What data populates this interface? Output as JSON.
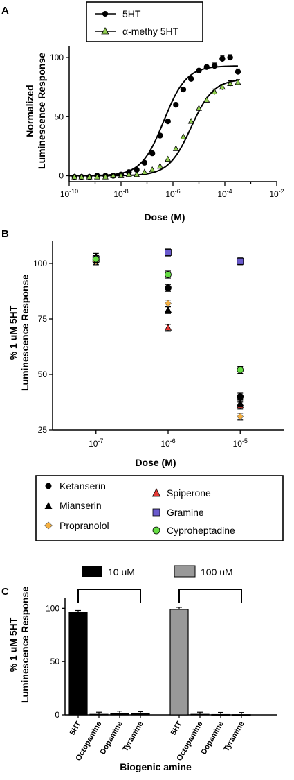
{
  "chart_data": [
    {
      "panel": "A",
      "type": "scatter",
      "x_scale": "log",
      "xlabel": "Dose (M)",
      "ylabel_lines": [
        "Normalized",
        "Luminescence Response"
      ],
      "xlim": [
        1e-10,
        0.01
      ],
      "ylim": [
        -5,
        110
      ],
      "x_ticks": [
        {
          "v": 1e-10,
          "base": "10",
          "exp": "-10"
        },
        {
          "v": 1e-08,
          "base": "10",
          "exp": "-8"
        },
        {
          "v": 1e-06,
          "base": "10",
          "exp": "-6"
        },
        {
          "v": 0.0001,
          "base": "10",
          "exp": "-4"
        },
        {
          "v": 0.01,
          "base": "10",
          "exp": "-2"
        }
      ],
      "y_ticks": [
        "0",
        "50",
        "100"
      ],
      "legend": [
        "5HT",
        "α-methy 5HT"
      ],
      "series": [
        {
          "name": "5HT",
          "marker": "circle",
          "color": "#000000",
          "fit": {
            "bottom": 0,
            "top": 93,
            "log_ec50": -6.35,
            "hill": 1.0
          },
          "points": [
            {
              "x": 1.6e-10,
              "y": -1
            },
            {
              "x": 3e-10,
              "y": -1
            },
            {
              "x": 6e-10,
              "y": -1
            },
            {
              "x": 1.2e-09,
              "y": 0
            },
            {
              "x": 2.5e-09,
              "y": 0
            },
            {
              "x": 5e-09,
              "y": 0
            },
            {
              "x": 1e-08,
              "y": 1
            },
            {
              "x": 2e-08,
              "y": 3
            },
            {
              "x": 4e-08,
              "y": 5
            },
            {
              "x": 8e-08,
              "y": 11
            },
            {
              "x": 1.6e-07,
              "y": 19
            },
            {
              "x": 3.2e-07,
              "y": 34
            },
            {
              "x": 6.4e-07,
              "y": 46
            },
            {
              "x": 1.3e-06,
              "y": 60
            },
            {
              "x": 2.5e-06,
              "y": 73
            },
            {
              "x": 5e-06,
              "y": 82
            },
            {
              "x": 1e-05,
              "y": 89
            },
            {
              "x": 2e-05,
              "y": 92
            },
            {
              "x": 4e-05,
              "y": 93
            },
            {
              "x": 8e-05,
              "y": 99
            },
            {
              "x": 0.00016,
              "y": 100
            },
            {
              "x": 0.00032,
              "y": 88
            }
          ]
        },
        {
          "name": "α-methy 5HT",
          "marker": "triangle",
          "color": "#92d050",
          "fit": {
            "bottom": 0,
            "top": 82,
            "log_ec50": -5.3,
            "hill": 1.0
          },
          "points": [
            {
              "x": 1.6e-10,
              "y": -1
            },
            {
              "x": 3e-10,
              "y": -1
            },
            {
              "x": 6e-10,
              "y": -1
            },
            {
              "x": 1.2e-09,
              "y": -1
            },
            {
              "x": 2.5e-09,
              "y": -1
            },
            {
              "x": 5e-09,
              "y": 0
            },
            {
              "x": 1e-08,
              "y": 0
            },
            {
              "x": 2e-08,
              "y": 1
            },
            {
              "x": 4e-08,
              "y": 1
            },
            {
              "x": 8e-08,
              "y": 3
            },
            {
              "x": 1.6e-07,
              "y": 5
            },
            {
              "x": 3.2e-07,
              "y": 8
            },
            {
              "x": 6.4e-07,
              "y": 14
            },
            {
              "x": 1.3e-06,
              "y": 23
            },
            {
              "x": 2.5e-06,
              "y": 33
            },
            {
              "x": 5e-06,
              "y": 46
            },
            {
              "x": 1e-05,
              "y": 57
            },
            {
              "x": 2e-05,
              "y": 64
            },
            {
              "x": 4e-05,
              "y": 71
            },
            {
              "x": 8e-05,
              "y": 75
            },
            {
              "x": 0.00016,
              "y": 78
            },
            {
              "x": 0.00032,
              "y": 79
            }
          ]
        }
      ]
    },
    {
      "panel": "B",
      "type": "scatter",
      "x_scale": "log",
      "xlabel": "Dose (M)",
      "ylabel_lines": [
        "% 1 uM 5HT",
        "Luminescence Response"
      ],
      "xlim": [
        2.5e-08,
        4e-05
      ],
      "ylim": [
        25,
        110
      ],
      "x_ticks": [
        {
          "v": 1e-07,
          "base": "10",
          "exp": "-7"
        },
        {
          "v": 1e-06,
          "base": "10",
          "exp": "-6"
        },
        {
          "v": 1e-05,
          "base": "10",
          "exp": "-5"
        }
      ],
      "y_ticks": [
        "25",
        "50",
        "75",
        "100"
      ],
      "legend": [
        "Ketanserin",
        "Spiperone",
        "Mianserin",
        "Gramine",
        "Propranolol",
        "Cyproheptadine"
      ],
      "series": [
        {
          "name": "Ketanserin",
          "marker": "circle",
          "color": "#000000",
          "points": [
            {
              "x": 1e-07,
              "y": 101
            },
            {
              "x": 1e-06,
              "y": 89
            },
            {
              "x": 1e-05,
              "y": 40
            }
          ]
        },
        {
          "name": "Spiperone",
          "marker": "triangle",
          "color": "#e53935",
          "points": [
            {
              "x": 1e-07,
              "y": 102
            },
            {
              "x": 1e-06,
              "y": 71
            },
            {
              "x": 1e-05,
              "y": 36
            }
          ]
        },
        {
          "name": "Mianserin",
          "marker": "triangle",
          "color": "#000000",
          "points": [
            {
              "x": 1e-07,
              "y": 103
            },
            {
              "x": 1e-06,
              "y": 79
            },
            {
              "x": 1e-05,
              "y": 37
            }
          ]
        },
        {
          "name": "Gramine",
          "marker": "square",
          "color": "#6a5acd",
          "points": [
            {
              "x": 1e-07,
              "y": 102
            },
            {
              "x": 1e-06,
              "y": 105
            },
            {
              "x": 1e-05,
              "y": 101
            }
          ]
        },
        {
          "name": "Propranolol",
          "marker": "diamond",
          "color": "#f5b041",
          "points": [
            {
              "x": 1e-07,
              "y": 101
            },
            {
              "x": 1e-06,
              "y": 82
            },
            {
              "x": 1e-05,
              "y": 31
            }
          ]
        },
        {
          "name": "Cyproheptadine",
          "marker": "circle",
          "color": "#66dd44",
          "points": [
            {
              "x": 1e-07,
              "y": 102
            },
            {
              "x": 1e-06,
              "y": 95
            },
            {
              "x": 1e-05,
              "y": 52
            }
          ]
        }
      ]
    },
    {
      "panel": "C",
      "type": "bar",
      "xlabel": "Biogenic amine",
      "ylabel_lines": [
        "% 1 uM 5HT",
        "Luminescence Response"
      ],
      "ylim": [
        0,
        110
      ],
      "y_ticks": [
        "0",
        "50",
        "100"
      ],
      "groups": [
        {
          "name": "10 uM",
          "color": "#000000",
          "categories": [
            "5HT",
            "Octopamine",
            "Dopamine",
            "Tyramine"
          ],
          "values": [
            96,
            0.5,
            1.5,
            1
          ]
        },
        {
          "name": "100 uM",
          "color": "#999999",
          "categories": [
            "5HT",
            "Octopamine",
            "Dopamine",
            "Tyramine"
          ],
          "values": [
            99,
            0.5,
            0.3,
            0.2
          ]
        }
      ]
    }
  ]
}
